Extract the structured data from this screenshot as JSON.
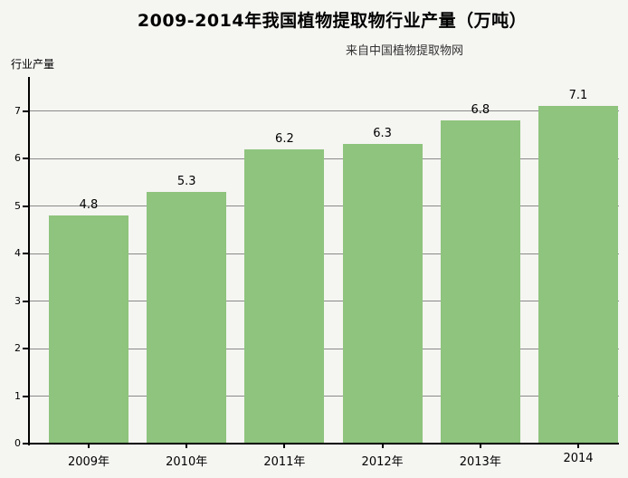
{
  "chart_data": {
    "type": "bar",
    "title": "2009-2014年我国植物提取物行业产量（万吨）",
    "subtitle": "来自中国植物提取物网",
    "ylabel": "行业产量",
    "xlabel": "",
    "categories": [
      "2009年",
      "2010年",
      "2011年",
      "2012年",
      "2013年",
      "2014"
    ],
    "values": [
      4.8,
      5.3,
      6.2,
      6.3,
      6.8,
      7.1
    ],
    "yticks": [
      0,
      1,
      2,
      3,
      4,
      5,
      6,
      7
    ],
    "ylim": [
      0,
      7.7
    ],
    "grid": true,
    "legend_position": "none",
    "colors": {
      "bar": "#8ec47d",
      "background": "#f5f5f2",
      "gridline": "#8a8a8a",
      "axis": "#000000",
      "text": "#000000"
    }
  }
}
